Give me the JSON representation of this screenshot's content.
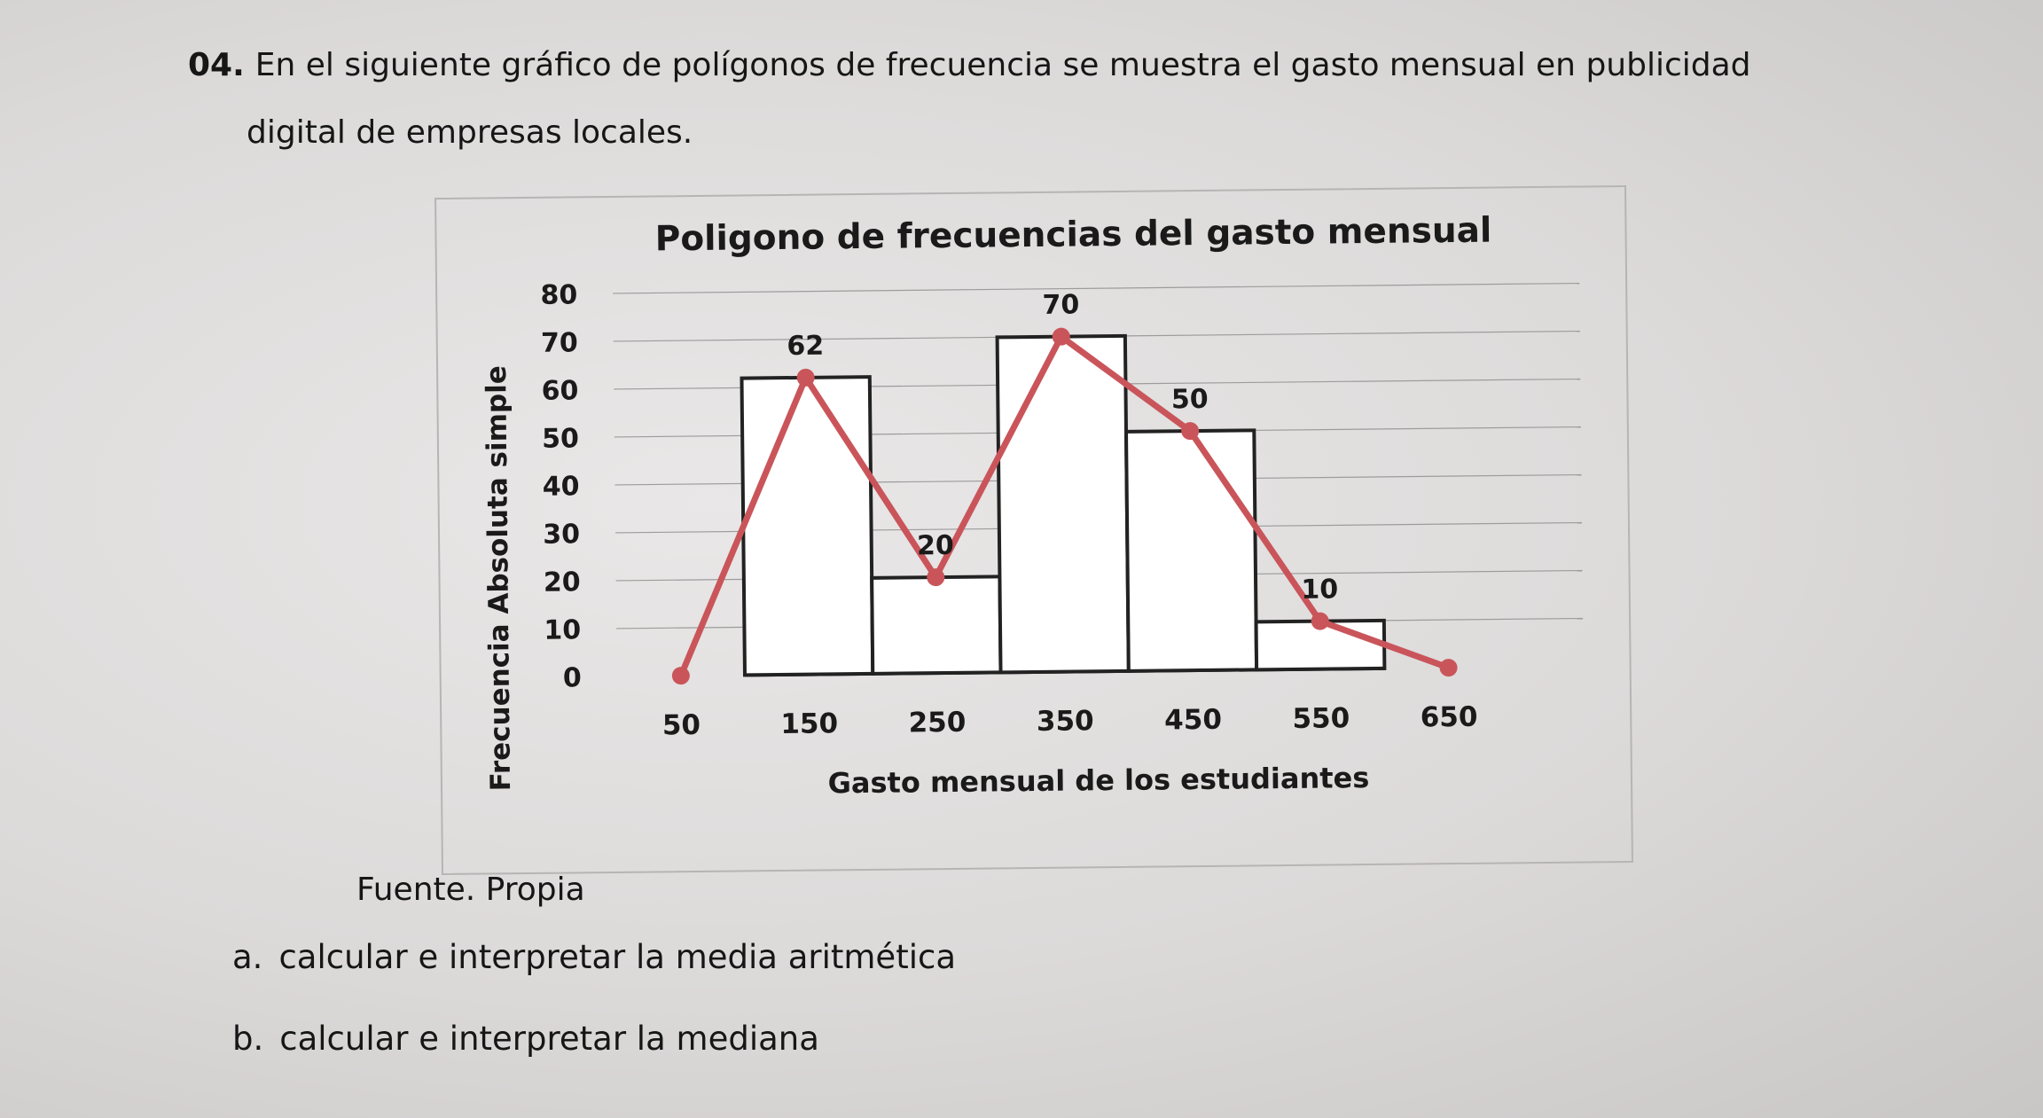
{
  "problem": {
    "number": "04.",
    "statement_line1": "En el siguiente gráfico de polígonos de frecuencia se muestra el gasto mensual en publicidad",
    "statement_line2": "digital de empresas locales."
  },
  "source_note": "Fuente. Propia",
  "tasks": [
    {
      "letter": "a.",
      "text": "calcular e interpretar la media aritmética"
    },
    {
      "letter": "b.",
      "text": "calcular e interpretar la mediana"
    }
  ],
  "chart_data": {
    "type": "bar",
    "title": "Poligono de frecuencias del gasto mensual",
    "xlabel": "Gasto mensual de los estudiantes",
    "ylabel": "Frecuencia Absoluta simple",
    "ylim": [
      0,
      80
    ],
    "yticks": [
      "0",
      "10",
      "20",
      "30",
      "40",
      "50",
      "60",
      "70",
      "80"
    ],
    "xticks": [
      "50",
      "150",
      "250",
      "350",
      "450",
      "550",
      "650"
    ],
    "grid": true,
    "bars": {
      "categories": [
        "150",
        "250",
        "350",
        "450",
        "550"
      ],
      "values": [
        62,
        20,
        70,
        50,
        10
      ],
      "fill": "#ffffff",
      "stroke": "#222222"
    },
    "polygon": {
      "x": [
        50,
        150,
        250,
        350,
        450,
        550,
        650
      ],
      "y": [
        0,
        62,
        20,
        70,
        50,
        10,
        0
      ],
      "color": "#c9555a"
    },
    "data_labels": [
      "62",
      "20",
      "70",
      "50",
      "10"
    ]
  }
}
